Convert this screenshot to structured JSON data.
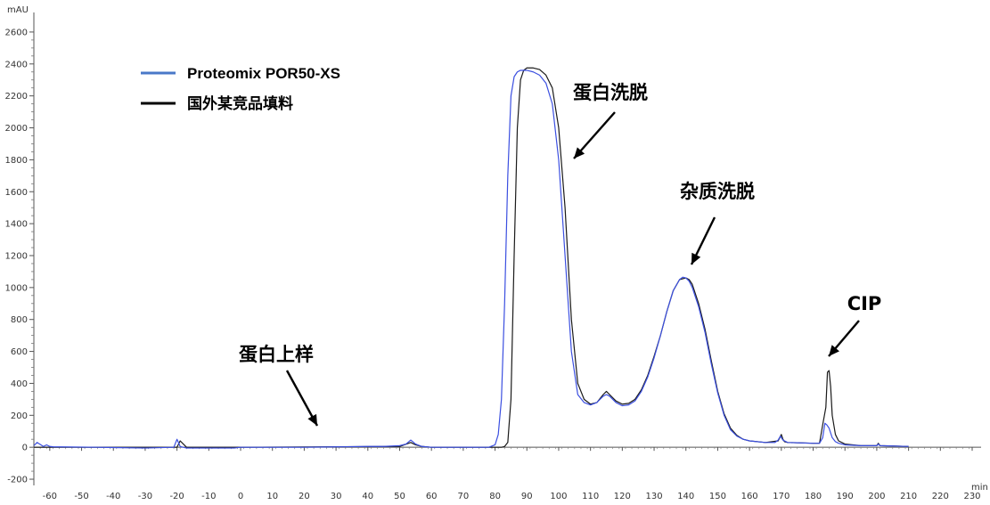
{
  "chart_data": {
    "type": "line",
    "y_unit": "mAU",
    "x_unit": "min",
    "xlim": [
      -65,
      230
    ],
    "ylim": [
      -250,
      2700
    ],
    "x_ticks": [
      -60,
      -50,
      -40,
      -30,
      -20,
      -10,
      0,
      10,
      20,
      30,
      40,
      50,
      60,
      70,
      80,
      90,
      100,
      110,
      120,
      130,
      140,
      150,
      160,
      170,
      180,
      190,
      200,
      210,
      220,
      230
    ],
    "y_ticks": [
      -200,
      0,
      200,
      400,
      600,
      800,
      1000,
      1200,
      1400,
      1600,
      1800,
      2000,
      2200,
      2400,
      2600
    ],
    "legend": {
      "position": "top-left"
    },
    "grid": false,
    "series": [
      {
        "name": "Proteomix POR50-XS",
        "color": "#3b4fe0",
        "x": [
          -65,
          -64,
          -62,
          -61,
          -60,
          -59,
          -45,
          -30,
          -21,
          -20,
          -19,
          -17,
          -10,
          -2,
          0,
          20,
          40,
          45,
          50,
          52,
          53.5,
          55,
          57,
          60,
          70,
          78,
          80,
          81,
          82,
          83,
          84,
          85,
          86,
          87,
          88,
          90,
          92,
          94,
          96,
          98,
          100,
          102,
          104,
          106,
          108,
          110,
          112,
          113,
          114,
          115,
          116,
          118,
          120,
          122,
          124,
          126,
          128,
          130,
          132,
          134,
          136,
          138,
          139,
          140,
          141,
          142,
          144,
          146,
          148,
          150,
          152,
          154,
          156,
          158,
          160,
          165,
          168,
          169,
          169.7,
          170.5,
          172,
          175,
          180,
          182,
          183,
          183.7,
          184.3,
          185,
          186,
          187,
          188,
          190,
          195,
          200,
          200.5,
          201,
          205,
          210
        ],
        "y": [
          10,
          30,
          5,
          15,
          5,
          3,
          0,
          -5,
          0,
          50,
          5,
          -5,
          -5,
          -5,
          0,
          0,
          5,
          5,
          10,
          20,
          45,
          20,
          5,
          0,
          0,
          0,
          15,
          80,
          300,
          900,
          1700,
          2200,
          2320,
          2350,
          2360,
          2360,
          2350,
          2330,
          2280,
          2150,
          1800,
          1200,
          600,
          330,
          280,
          265,
          280,
          300,
          320,
          330,
          320,
          280,
          260,
          265,
          290,
          350,
          440,
          560,
          700,
          850,
          980,
          1050,
          1065,
          1060,
          1040,
          1000,
          880,
          720,
          520,
          340,
          200,
          110,
          70,
          50,
          40,
          30,
          30,
          45,
          70,
          45,
          30,
          28,
          25,
          25,
          60,
          150,
          140,
          120,
          60,
          35,
          25,
          15,
          10,
          10,
          20,
          10,
          8,
          5
        ]
      },
      {
        "name": "国外某竞品填料",
        "color": "#1a1a1a",
        "x": [
          -65,
          -20,
          -19,
          -17,
          0,
          50,
          53.5,
          55,
          57,
          60,
          70,
          80,
          82,
          83,
          84,
          85,
          86,
          87,
          88,
          89,
          90,
          92,
          94,
          96,
          98,
          100,
          102,
          104,
          106,
          108,
          110,
          112,
          114,
          115,
          116,
          118,
          120,
          122,
          124,
          126,
          128,
          130,
          132,
          134,
          136,
          138,
          140,
          141,
          142,
          144,
          146,
          148,
          150,
          152,
          154,
          156,
          158,
          160,
          165,
          169,
          170,
          170.5,
          171,
          172,
          175,
          180,
          182,
          183,
          184,
          184.5,
          185,
          185.5,
          186,
          187,
          188,
          190,
          195,
          200,
          200.5,
          201,
          205,
          210
        ],
        "y": [
          0,
          0,
          40,
          0,
          0,
          5,
          30,
          15,
          5,
          0,
          0,
          0,
          0,
          5,
          30,
          300,
          1200,
          2000,
          2300,
          2360,
          2375,
          2375,
          2365,
          2330,
          2250,
          2000,
          1500,
          800,
          400,
          300,
          270,
          280,
          330,
          350,
          330,
          290,
          270,
          275,
          300,
          360,
          450,
          570,
          700,
          850,
          980,
          1050,
          1060,
          1050,
          1020,
          900,
          740,
          540,
          350,
          210,
          120,
          75,
          50,
          40,
          30,
          40,
          80,
          50,
          35,
          30,
          28,
          25,
          25,
          140,
          250,
          470,
          480,
          380,
          200,
          80,
          40,
          20,
          10,
          10,
          25,
          10,
          8,
          5
        ]
      }
    ],
    "annotations": [
      {
        "text": "蛋白上样",
        "x": 25,
        "y": 520
      },
      {
        "text": "蛋白洗脱",
        "x": 112,
        "y": 2320
      },
      {
        "text": "杂质洗脱",
        "x": 150,
        "y": 1580
      },
      {
        "text": "CIP",
        "x": 190,
        "y": 810
      }
    ]
  }
}
